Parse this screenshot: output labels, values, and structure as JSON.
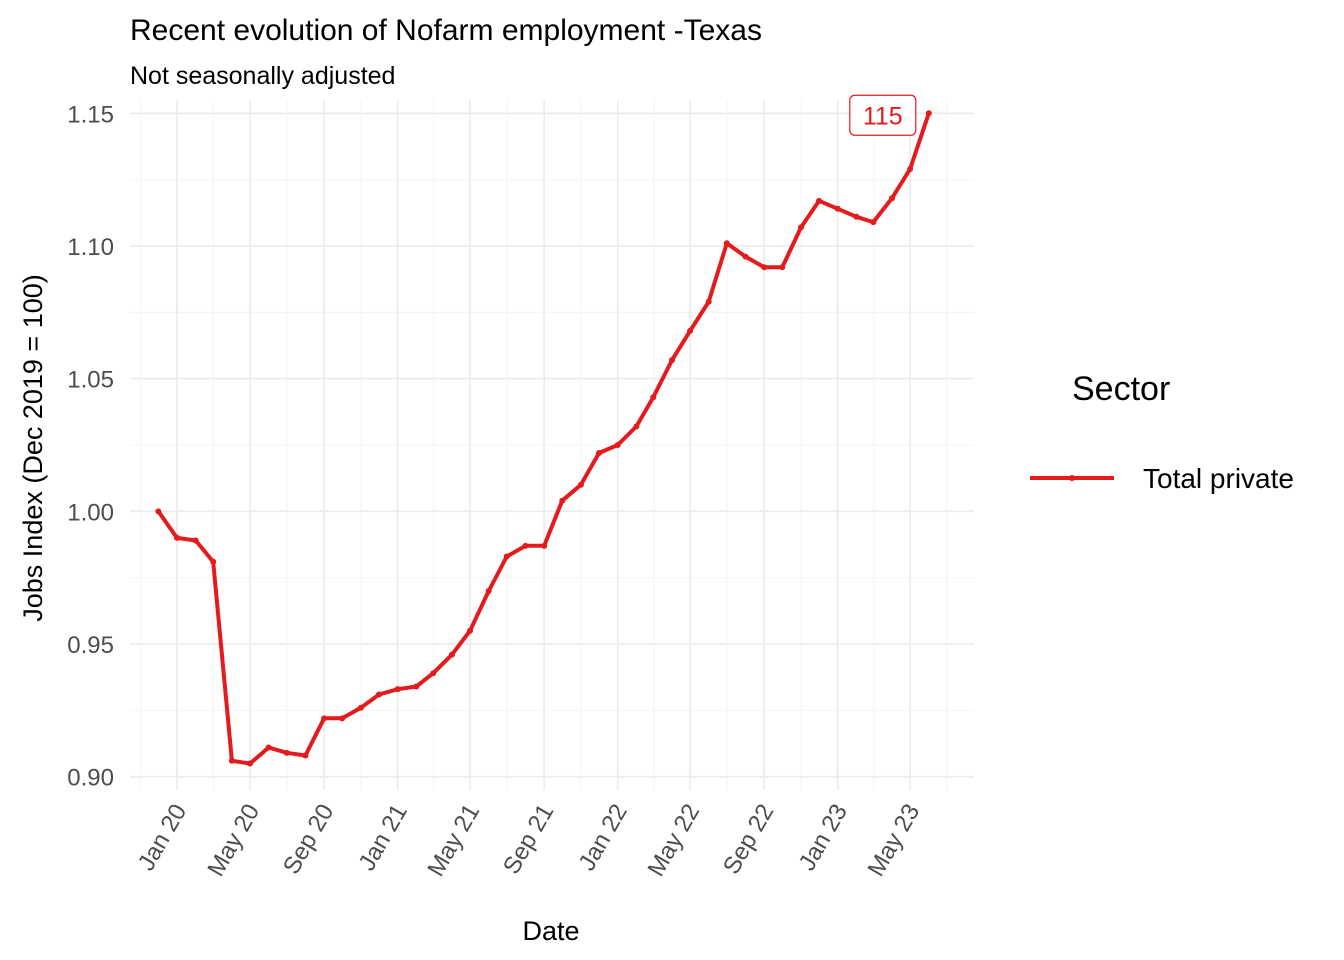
{
  "chart_data": {
    "type": "line",
    "title": "Recent evolution of Nofarm employment -Texas",
    "subtitle": "Not seasonally adjusted",
    "xlabel": "Date",
    "ylabel": "Jobs Index (Dec 2019 = 100)",
    "ylim": [
      0.895,
      1.155
    ],
    "xlim": [
      "2019-10-15",
      "2023-08-15"
    ],
    "y_ticks": [
      0.9,
      0.95,
      1.0,
      1.05,
      1.1,
      1.15
    ],
    "y_tick_labels": [
      "0.90",
      "0.95",
      "1.00",
      "1.05",
      "1.10",
      "1.15"
    ],
    "x_ticks": [
      "2020-01-01",
      "2020-05-01",
      "2020-09-01",
      "2021-01-01",
      "2021-05-01",
      "2021-09-01",
      "2022-01-01",
      "2022-05-01",
      "2022-09-01",
      "2023-01-01",
      "2023-05-01"
    ],
    "x_tick_labels": [
      "Jan 20",
      "May 20",
      "Sep 20",
      "Jan 21",
      "May 21",
      "Sep 21",
      "Jan 22",
      "May 22",
      "Sep 22",
      "Jan 23",
      "May 23"
    ],
    "grid": true,
    "legend": {
      "title": "Sector",
      "position": "right"
    },
    "series": [
      {
        "name": "Total private",
        "color": "#e41a1c",
        "x": [
          "2019-12-01",
          "2020-01-01",
          "2020-02-01",
          "2020-03-01",
          "2020-04-01",
          "2020-05-01",
          "2020-06-01",
          "2020-07-01",
          "2020-08-01",
          "2020-09-01",
          "2020-10-01",
          "2020-11-01",
          "2020-12-01",
          "2021-01-01",
          "2021-02-01",
          "2021-03-01",
          "2021-04-01",
          "2021-05-01",
          "2021-06-01",
          "2021-07-01",
          "2021-08-01",
          "2021-09-01",
          "2021-10-01",
          "2021-11-01",
          "2021-12-01",
          "2022-01-01",
          "2022-02-01",
          "2022-03-01",
          "2022-04-01",
          "2022-05-01",
          "2022-06-01",
          "2022-07-01",
          "2022-08-01",
          "2022-09-01",
          "2022-10-01",
          "2022-11-01",
          "2022-12-01",
          "2023-01-01",
          "2023-02-01",
          "2023-03-01",
          "2023-04-01",
          "2023-05-01",
          "2023-06-01"
        ],
        "values": [
          1.0,
          0.99,
          0.989,
          0.981,
          0.906,
          0.905,
          0.911,
          0.909,
          0.908,
          0.922,
          0.922,
          0.926,
          0.931,
          0.933,
          0.934,
          0.939,
          0.946,
          0.955,
          0.97,
          0.983,
          0.987,
          0.987,
          1.004,
          1.01,
          1.022,
          1.025,
          1.032,
          1.043,
          1.057,
          1.068,
          1.079,
          1.101,
          1.096,
          1.092,
          1.092,
          1.107,
          1.117,
          1.114,
          1.111,
          1.109,
          1.118,
          1.129,
          1.15
        ]
      }
    ],
    "annotations": [
      {
        "x": "2023-06-01",
        "y": 1.15,
        "text": "115"
      }
    ]
  }
}
